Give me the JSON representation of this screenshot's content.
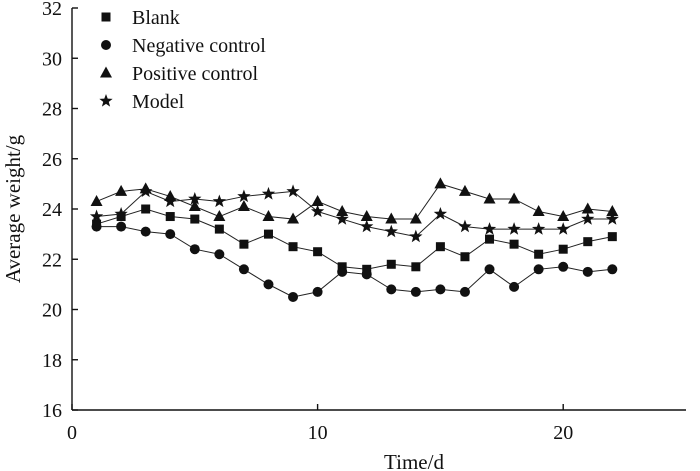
{
  "chart_data": {
    "type": "line",
    "title": "",
    "xlabel": "Time/d",
    "ylabel": "Average weight/g",
    "xlim": [
      0,
      25
    ],
    "ylim": [
      16,
      32
    ],
    "xticks": [
      0,
      10,
      20
    ],
    "yticks": [
      16,
      18,
      20,
      22,
      24,
      26,
      28,
      30,
      32
    ],
    "grid": false,
    "legend_position": "top-left",
    "x": [
      1,
      2,
      3,
      4,
      5,
      6,
      7,
      8,
      9,
      10,
      11,
      12,
      13,
      14,
      15,
      16,
      17,
      18,
      19,
      20,
      21,
      22
    ],
    "series": [
      {
        "name": "Blank",
        "marker": "square",
        "values": [
          23.4,
          23.7,
          24.0,
          23.7,
          23.6,
          23.2,
          22.6,
          23.0,
          22.5,
          22.3,
          21.7,
          21.6,
          21.8,
          21.7,
          22.5,
          22.1,
          22.8,
          22.6,
          22.2,
          22.4,
          22.7,
          22.9
        ]
      },
      {
        "name": "Negative control",
        "marker": "circle",
        "values": [
          23.3,
          23.3,
          23.1,
          23.0,
          22.4,
          22.2,
          21.6,
          21.0,
          20.5,
          20.7,
          21.5,
          21.4,
          20.8,
          20.7,
          20.8,
          20.7,
          21.6,
          20.9,
          21.6,
          21.7,
          21.5,
          21.6
        ]
      },
      {
        "name": "Positive control",
        "marker": "triangle",
        "values": [
          24.3,
          24.7,
          24.8,
          24.5,
          24.1,
          23.7,
          24.1,
          23.7,
          23.6,
          24.3,
          23.9,
          23.7,
          23.6,
          23.6,
          25.0,
          24.7,
          24.4,
          24.4,
          23.9,
          23.7,
          24.0,
          23.9
        ]
      },
      {
        "name": "Model",
        "marker": "star",
        "values": [
          23.7,
          23.8,
          24.7,
          24.3,
          24.4,
          24.3,
          24.5,
          24.6,
          24.7,
          23.9,
          23.6,
          23.3,
          23.1,
          22.9,
          23.8,
          23.3,
          23.2,
          23.2,
          23.2,
          23.2,
          23.6,
          23.6
        ]
      }
    ]
  }
}
